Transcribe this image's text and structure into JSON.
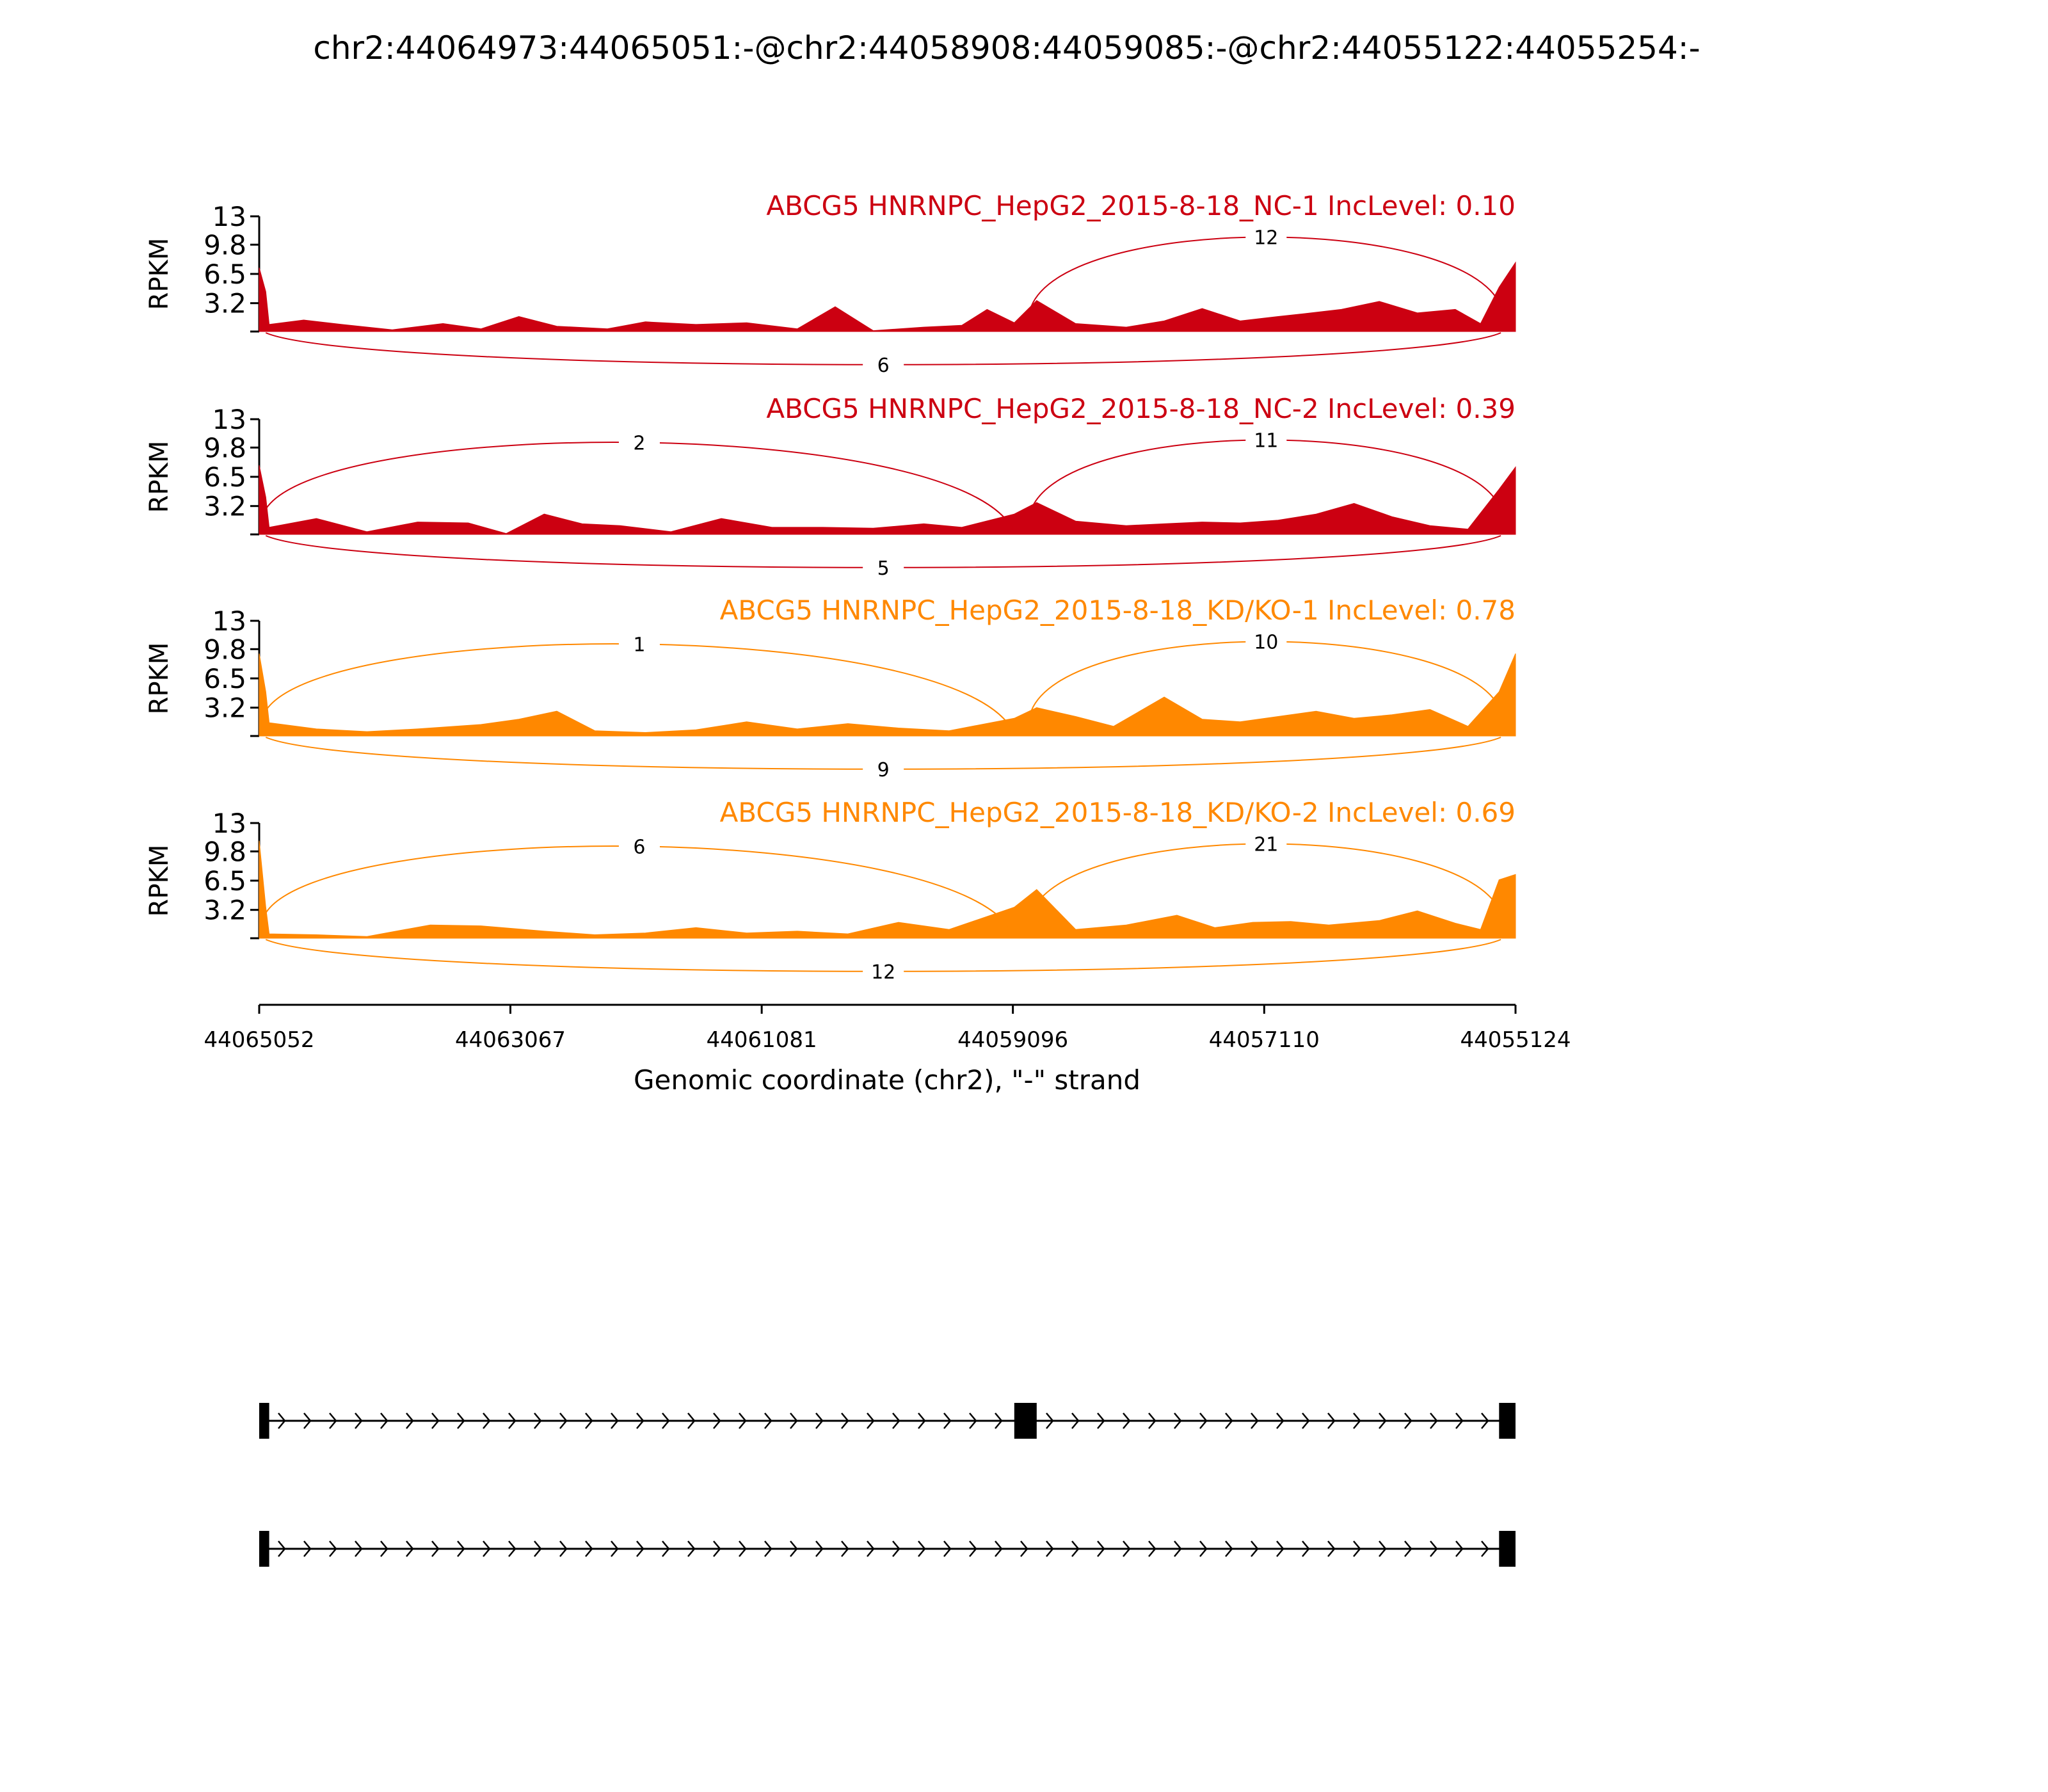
{
  "title": "chr2:44064973:44065051:-@chr2:44058908:44059085:-@chr2:44055122:44055254:-",
  "chart_data": {
    "type": "area",
    "subtype": "sashimi",
    "title": "chr2:44064973:44065051:-@chr2:44058908:44059085:-@chr2:44055122:44055254:-",
    "xlabel": "Genomic coordinate (chr2), \"-\" strand",
    "ylabel": "RPKM",
    "xlim": [
      44065052,
      44055124
    ],
    "x_reversed": true,
    "x_ticks": [
      "44065052",
      "44063067",
      "44061081",
      "44059096",
      "44057110",
      "44055124"
    ],
    "ylim": [
      0,
      13
    ],
    "y_ticks": [
      "13",
      "9.8",
      "6.5",
      "3.2"
    ],
    "exons": {
      "upstream": [
        44065051,
        44064973
      ],
      "skipped": [
        44059085,
        44058908
      ],
      "downstream": [
        44055254,
        44055122
      ]
    },
    "tracks": [
      {
        "label": "ABCG5 HNRNPC_HepG2_2015-8-18_NC-1 IncLevel: 0.10",
        "color": "#cc0011",
        "junctions": [
          {
            "from": 44058950,
            "to": 44055240,
            "count": "12",
            "side": "above"
          },
          {
            "from": 44065000,
            "to": 44055240,
            "count": "6",
            "side": "below"
          }
        ],
        "coverage": [
          [
            44065052,
            7.2
          ],
          [
            44065000,
            4.5
          ],
          [
            44064973,
            0.8
          ],
          [
            44064700,
            1.3
          ],
          [
            44064400,
            0.8
          ],
          [
            44064000,
            0.2
          ],
          [
            44063600,
            0.9
          ],
          [
            44063300,
            0.3
          ],
          [
            44063000,
            1.7
          ],
          [
            44062700,
            0.6
          ],
          [
            44062300,
            0.3
          ],
          [
            44062000,
            1.1
          ],
          [
            44061600,
            0.8
          ],
          [
            44061200,
            1.0
          ],
          [
            44060800,
            0.3
          ],
          [
            44060500,
            2.8
          ],
          [
            44060200,
            0.1
          ],
          [
            44059800,
            0.5
          ],
          [
            44059500,
            0.7
          ],
          [
            44059300,
            2.5
          ],
          [
            44059085,
            1.0
          ],
          [
            44058908,
            3.5
          ],
          [
            44058600,
            0.9
          ],
          [
            44058200,
            0.5
          ],
          [
            44057900,
            1.2
          ],
          [
            44057600,
            2.6
          ],
          [
            44057300,
            1.2
          ],
          [
            44057000,
            1.7
          ],
          [
            44056800,
            2.0
          ],
          [
            44056500,
            2.5
          ],
          [
            44056200,
            3.4
          ],
          [
            44055900,
            2.1
          ],
          [
            44055600,
            2.5
          ],
          [
            44055400,
            0.9
          ],
          [
            44055254,
            5.0
          ],
          [
            44055124,
            7.8
          ]
        ]
      },
      {
        "label": "ABCG5 HNRNPC_HepG2_2015-8-18_NC-2 IncLevel: 0.39",
        "color": "#cc0011",
        "junctions": [
          {
            "from": 44065000,
            "to": 44059096,
            "count": "2",
            "side": "above"
          },
          {
            "from": 44058950,
            "to": 44055240,
            "count": "11",
            "side": "above"
          },
          {
            "from": 44065000,
            "to": 44055240,
            "count": "5",
            "side": "below"
          }
        ],
        "coverage": [
          [
            44065052,
            7.8
          ],
          [
            44065000,
            4.2
          ],
          [
            44064973,
            0.8
          ],
          [
            44064600,
            1.8
          ],
          [
            44064200,
            0.3
          ],
          [
            44063800,
            1.4
          ],
          [
            44063400,
            1.3
          ],
          [
            44063100,
            0.1
          ],
          [
            44062800,
            2.3
          ],
          [
            44062500,
            1.2
          ],
          [
            44062200,
            1.0
          ],
          [
            44061800,
            0.3
          ],
          [
            44061400,
            1.8
          ],
          [
            44061000,
            0.8
          ],
          [
            44060600,
            0.8
          ],
          [
            44060200,
            0.7
          ],
          [
            44059800,
            1.2
          ],
          [
            44059500,
            0.8
          ],
          [
            44059085,
            2.3
          ],
          [
            44058908,
            3.6
          ],
          [
            44058600,
            1.5
          ],
          [
            44058200,
            1.0
          ],
          [
            44057900,
            1.2
          ],
          [
            44057600,
            1.4
          ],
          [
            44057300,
            1.3
          ],
          [
            44057000,
            1.6
          ],
          [
            44056700,
            2.3
          ],
          [
            44056400,
            3.5
          ],
          [
            44056100,
            2.0
          ],
          [
            44055800,
            1.0
          ],
          [
            44055500,
            0.6
          ],
          [
            44055254,
            5.1
          ],
          [
            44055124,
            7.6
          ]
        ]
      },
      {
        "label": "ABCG5 HNRNPC_HepG2_2015-8-18_KD/KO-1 IncLevel: 0.78",
        "color": "#ff8800",
        "junctions": [
          {
            "from": 44065000,
            "to": 44059096,
            "count": "1",
            "side": "above"
          },
          {
            "from": 44058950,
            "to": 44055240,
            "count": "10",
            "side": "above"
          },
          {
            "from": 44065000,
            "to": 44055240,
            "count": "9",
            "side": "below"
          }
        ],
        "coverage": [
          [
            44065052,
            9.3
          ],
          [
            44065000,
            5.0
          ],
          [
            44064973,
            1.5
          ],
          [
            44064600,
            0.8
          ],
          [
            44064200,
            0.5
          ],
          [
            44063800,
            0.8
          ],
          [
            44063300,
            1.3
          ],
          [
            44063000,
            1.9
          ],
          [
            44062700,
            2.8
          ],
          [
            44062400,
            0.6
          ],
          [
            44062000,
            0.4
          ],
          [
            44061600,
            0.7
          ],
          [
            44061200,
            1.6
          ],
          [
            44060800,
            0.8
          ],
          [
            44060400,
            1.4
          ],
          [
            44060000,
            0.9
          ],
          [
            44059600,
            0.6
          ],
          [
            44059085,
            2.0
          ],
          [
            44058908,
            3.2
          ],
          [
            44058600,
            2.2
          ],
          [
            44058300,
            1.1
          ],
          [
            44057900,
            4.4
          ],
          [
            44057600,
            1.9
          ],
          [
            44057300,
            1.6
          ],
          [
            44057000,
            2.2
          ],
          [
            44056700,
            2.8
          ],
          [
            44056400,
            2.0
          ],
          [
            44056100,
            2.4
          ],
          [
            44055800,
            3.0
          ],
          [
            44055500,
            1.1
          ],
          [
            44055254,
            5.0
          ],
          [
            44055124,
            9.3
          ]
        ]
      },
      {
        "label": "ABCG5 HNRNPC_HepG2_2015-8-18_KD/KO-2 IncLevel: 0.69",
        "color": "#ff8800",
        "junctions": [
          {
            "from": 44065000,
            "to": 44059096,
            "count": "6",
            "side": "above"
          },
          {
            "from": 44058950,
            "to": 44055240,
            "count": "21",
            "side": "above"
          },
          {
            "from": 44065000,
            "to": 44055240,
            "count": "12",
            "side": "below"
          }
        ],
        "coverage": [
          [
            44065052,
            11.0
          ],
          [
            44065000,
            3.5
          ],
          [
            44064973,
            0.5
          ],
          [
            44064600,
            0.4
          ],
          [
            44064200,
            0.2
          ],
          [
            44063700,
            1.5
          ],
          [
            44063300,
            1.4
          ],
          [
            44062800,
            0.8
          ],
          [
            44062400,
            0.4
          ],
          [
            44062000,
            0.6
          ],
          [
            44061600,
            1.2
          ],
          [
            44061200,
            0.6
          ],
          [
            44060800,
            0.8
          ],
          [
            44060400,
            0.5
          ],
          [
            44060000,
            1.8
          ],
          [
            44059600,
            1.0
          ],
          [
            44059085,
            3.5
          ],
          [
            44058908,
            5.5
          ],
          [
            44058600,
            1.0
          ],
          [
            44058200,
            1.5
          ],
          [
            44057800,
            2.6
          ],
          [
            44057500,
            1.2
          ],
          [
            44057200,
            1.8
          ],
          [
            44056900,
            1.9
          ],
          [
            44056600,
            1.5
          ],
          [
            44056200,
            2.0
          ],
          [
            44055900,
            3.1
          ],
          [
            44055600,
            1.7
          ],
          [
            44055400,
            1.0
          ],
          [
            44055254,
            6.6
          ],
          [
            44055124,
            7.2
          ]
        ]
      }
    ],
    "transcripts": [
      {
        "exons": [
          [
            44065052,
            44064973
          ],
          [
            44059085,
            44058908
          ],
          [
            44055254,
            44055124
          ]
        ]
      },
      {
        "exons": [
          [
            44065052,
            44064973
          ],
          [
            44055254,
            44055124
          ]
        ]
      }
    ]
  }
}
